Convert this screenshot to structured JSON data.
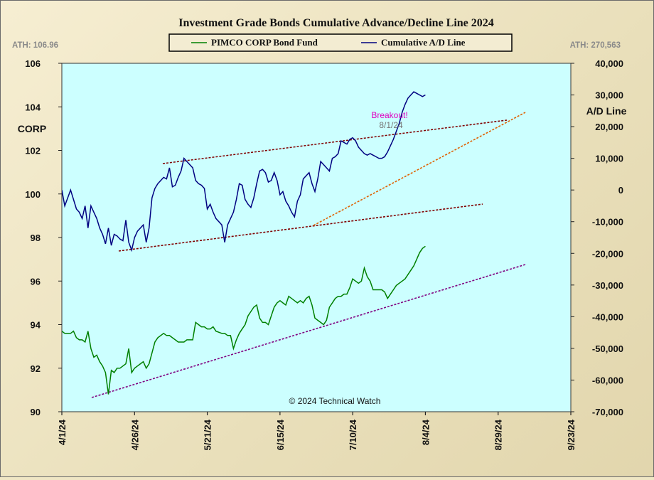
{
  "chart_data": {
    "type": "line",
    "title": "Investment Grade Bonds Cumulative Advance/Decline Line 2024",
    "y_left_label": "CORP",
    "y_right_label": "A/D Line",
    "ath_left": "ATH: 106.96",
    "ath_right": "ATH: 270,563",
    "copyright": "© 2024 Technical Watch",
    "legend": [
      {
        "name": "PIMCO CORP Bond Fund",
        "color": "#008000"
      },
      {
        "name": "Cumulative A/D Line",
        "color": "#000080"
      }
    ],
    "x_tick_labels": [
      "4/1/24",
      "4/26/24",
      "5/21/24",
      "6/15/24",
      "7/10/24",
      "8/4/24",
      "8/29/24",
      "9/23/24"
    ],
    "x_range_days": [
      0,
      175
    ],
    "left_axis": {
      "min": 90,
      "max": 106,
      "ticks": [
        90,
        92,
        94,
        96,
        98,
        100,
        102,
        104,
        106
      ]
    },
    "right_axis": {
      "min": -70000,
      "max": 40000,
      "ticks": [
        -70000,
        -60000,
        -50000,
        -40000,
        -30000,
        -20000,
        -10000,
        0,
        10000,
        20000,
        30000,
        40000
      ],
      "tick_labels": [
        "-70,000",
        "-60,000",
        "-50,000",
        "-40,000",
        "-30,000",
        "-20,000",
        "-10,000",
        "0",
        "10,000",
        "20,000",
        "30,000",
        "40,000"
      ]
    },
    "series": [
      {
        "name": "PIMCO CORP Bond Fund",
        "axis": "left",
        "color": "#008000",
        "x": [
          0,
          1,
          3,
          4,
          5,
          6,
          7,
          8,
          9,
          10,
          11,
          12,
          13,
          14,
          15,
          16,
          17,
          18,
          19,
          20,
          21,
          22,
          23,
          24,
          25,
          26,
          27,
          28,
          29,
          30,
          31,
          32,
          33,
          35,
          36,
          37,
          38,
          39,
          40,
          41,
          42,
          43,
          45,
          46,
          47,
          48,
          49,
          50,
          51,
          52,
          53,
          55,
          56,
          57,
          58,
          59,
          60,
          61,
          62,
          63,
          64,
          65,
          66,
          67,
          68,
          69,
          70,
          71,
          72,
          73,
          74,
          75,
          76,
          77,
          78,
          79,
          80,
          81,
          82,
          83,
          84,
          85,
          86,
          87,
          88,
          89,
          90,
          91,
          92,
          93,
          94,
          95,
          96,
          97,
          98,
          99,
          100,
          101,
          102,
          103,
          104,
          105,
          106,
          107,
          108,
          109,
          110,
          111,
          112,
          113,
          114,
          115,
          116,
          117,
          118,
          119,
          120,
          121,
          122,
          123,
          124,
          125
        ],
        "values": [
          93.7,
          93.6,
          93.6,
          93.7,
          93.4,
          93.3,
          93.3,
          93.2,
          93.7,
          92.9,
          92.5,
          92.6,
          92.3,
          92.1,
          91.8,
          90.8,
          91.9,
          91.8,
          92.0,
          92.0,
          92.1,
          92.2,
          92.9,
          91.8,
          92.0,
          92.1,
          92.2,
          92.3,
          92.0,
          92.2,
          92.7,
          93.2,
          93.4,
          93.6,
          93.5,
          93.5,
          93.4,
          93.3,
          93.2,
          93.2,
          93.2,
          93.3,
          93.3,
          94.1,
          94.0,
          93.9,
          93.9,
          93.8,
          93.8,
          93.9,
          93.7,
          93.6,
          93.6,
          93.5,
          93.5,
          92.9,
          93.3,
          93.6,
          93.8,
          94.0,
          94.4,
          94.6,
          94.8,
          94.9,
          94.3,
          94.1,
          94.1,
          94.0,
          94.4,
          94.8,
          95.0,
          95.1,
          95.0,
          94.9,
          95.3,
          95.2,
          95.1,
          95.0,
          95.1,
          95.0,
          95.2,
          95.3,
          94.9,
          94.3,
          94.2,
          94.1,
          94.0,
          94.2,
          94.8,
          95.0,
          95.2,
          95.3,
          95.3,
          95.4,
          95.4,
          95.7,
          96.1,
          96.0,
          95.9,
          96.0,
          96.6,
          96.2,
          96.0,
          95.6,
          95.6,
          95.6,
          95.6,
          95.5,
          95.2,
          95.4,
          95.6,
          95.8,
          95.9,
          96.0,
          96.1,
          96.3,
          96.5,
          96.7,
          97.0,
          97.3,
          97.5,
          97.6
        ]
      },
      {
        "name": "Cumulative A/D Line",
        "axis": "right",
        "color": "#000080",
        "x": [
          0,
          1,
          3,
          4,
          5,
          6,
          7,
          8,
          9,
          10,
          11,
          12,
          13,
          14,
          15,
          16,
          17,
          18,
          19,
          20,
          21,
          22,
          23,
          24,
          25,
          26,
          27,
          28,
          29,
          30,
          31,
          32,
          33,
          35,
          36,
          37,
          38,
          39,
          40,
          41,
          42,
          43,
          45,
          46,
          47,
          48,
          49,
          50,
          51,
          52,
          53,
          55,
          56,
          57,
          58,
          59,
          60,
          61,
          62,
          63,
          64,
          65,
          66,
          67,
          68,
          69,
          70,
          71,
          72,
          73,
          74,
          75,
          76,
          77,
          78,
          79,
          80,
          81,
          82,
          83,
          84,
          85,
          86,
          87,
          88,
          89,
          90,
          91,
          92,
          93,
          94,
          95,
          96,
          97,
          98,
          99,
          100,
          101,
          102,
          103,
          104,
          105,
          106,
          107,
          108,
          109,
          110,
          111,
          112,
          113,
          114,
          115,
          116,
          117,
          118,
          119,
          120,
          121,
          122,
          123,
          124,
          125
        ],
        "values": [
          0,
          -5000,
          0,
          -3000,
          -6000,
          -7000,
          -9000,
          -5000,
          -12000,
          -5000,
          -7000,
          -9000,
          -12000,
          -14000,
          -17000,
          -12000,
          -17500,
          -14000,
          -14500,
          -15500,
          -16000,
          -9500,
          -16500,
          -19000,
          -15000,
          -13000,
          -12000,
          -11000,
          -16500,
          -12000,
          -2500,
          500,
          2000,
          4000,
          3500,
          7000,
          1000,
          1500,
          4000,
          6000,
          10000,
          9000,
          7000,
          3000,
          2000,
          1500,
          500,
          -6000,
          -4500,
          -7000,
          -9000,
          -11000,
          -16500,
          -11000,
          -9000,
          -7000,
          -3000,
          2000,
          1500,
          -3000,
          -4500,
          -5500,
          -2500,
          2000,
          6000,
          6500,
          5500,
          2500,
          3000,
          5500,
          3000,
          -1500,
          -500,
          -3500,
          -5000,
          -7000,
          -8500,
          -3500,
          -1500,
          3500,
          4500,
          5500,
          2000,
          -500,
          3500,
          9000,
          8000,
          7000,
          6000,
          10000,
          10500,
          11500,
          15500,
          15000,
          14500,
          16000,
          16500,
          15500,
          13500,
          12500,
          11500,
          11000,
          11500,
          11000,
          10500,
          10000,
          10000,
          10500,
          12000,
          14000,
          16000,
          18500,
          21000,
          24500,
          27000,
          29000,
          30000,
          31000,
          30500,
          30000,
          29500,
          30000
        ]
      }
    ],
    "annotations": [
      {
        "text": "Breakout!",
        "color": "#e000c0"
      },
      {
        "text": "8/1/24",
        "color": "#777777"
      }
    ]
  }
}
